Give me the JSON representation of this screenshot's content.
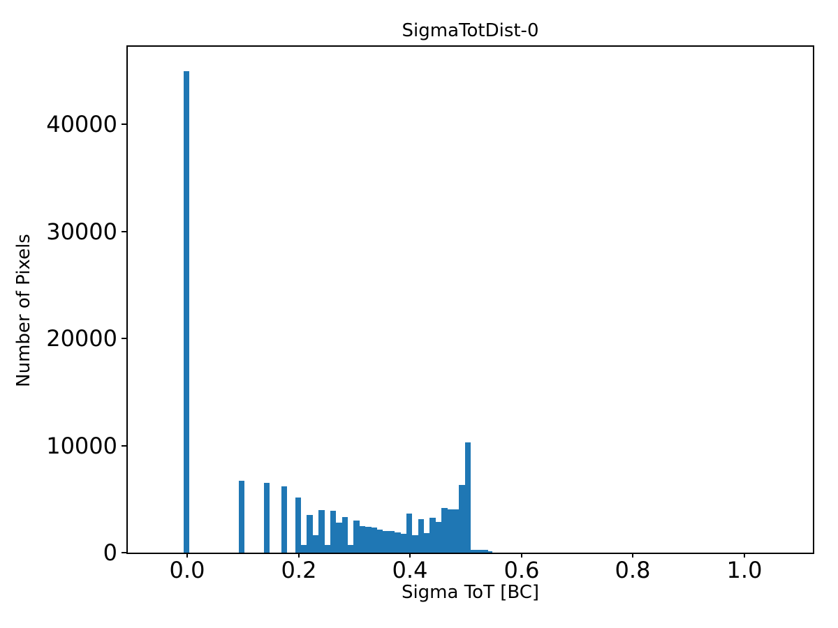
{
  "title": "SigmaTotDist-0",
  "chart_data": {
    "type": "bar",
    "subtype": "histogram",
    "title": "SigmaTotDist-0",
    "xlabel": "Sigma ToT [BC]",
    "ylabel": "Number of Pixels",
    "xlim": [
      -0.1064,
      1.1227
    ],
    "ylim": [
      0,
      47250
    ],
    "x_ticks": [
      0.0,
      0.2,
      0.4,
      0.6,
      0.8,
      1.0
    ],
    "x_tick_labels": [
      "0.0",
      "0.2",
      "0.4",
      "0.6",
      "0.8",
      "1.0"
    ],
    "y_ticks": [
      0,
      10000,
      20000,
      30000,
      40000
    ],
    "y_tick_labels": [
      "0",
      "10000",
      "20000",
      "30000",
      "40000"
    ],
    "grid": false,
    "legend": false,
    "bar_color": "#1f77b4",
    "spine_color": "#000000",
    "background_color": "#ffffff",
    "bins_format": [
      "x_start",
      "x_end",
      "count"
    ],
    "bins": [
      [
        -0.0063,
        0.0042,
        45000
      ],
      [
        0.0926,
        0.1031,
        6700
      ],
      [
        0.1377,
        0.1482,
        6500
      ],
      [
        0.169,
        0.1795,
        6200
      ],
      [
        0.1939,
        0.2044,
        5130
      ],
      [
        0.2044,
        0.2149,
        700
      ],
      [
        0.2149,
        0.2254,
        3510
      ],
      [
        0.2254,
        0.2359,
        1630
      ],
      [
        0.2359,
        0.2464,
        4000
      ],
      [
        0.2464,
        0.2569,
        700
      ],
      [
        0.2569,
        0.2674,
        3940
      ],
      [
        0.2674,
        0.2779,
        2790
      ],
      [
        0.2779,
        0.2884,
        3330
      ],
      [
        0.2884,
        0.2989,
        700
      ],
      [
        0.2989,
        0.3094,
        3000
      ],
      [
        0.3094,
        0.3199,
        2490
      ],
      [
        0.3199,
        0.3304,
        2430
      ],
      [
        0.3304,
        0.3409,
        2320
      ],
      [
        0.3409,
        0.3514,
        2170
      ],
      [
        0.3514,
        0.3619,
        2040
      ],
      [
        0.3619,
        0.3724,
        2040
      ],
      [
        0.3724,
        0.3829,
        1910
      ],
      [
        0.3829,
        0.3934,
        1780
      ],
      [
        0.3934,
        0.4039,
        3660
      ],
      [
        0.4039,
        0.4144,
        1630
      ],
      [
        0.4144,
        0.4249,
        3160
      ],
      [
        0.4249,
        0.4354,
        1820
      ],
      [
        0.4354,
        0.4459,
        3230
      ],
      [
        0.4459,
        0.4564,
        2880
      ],
      [
        0.4564,
        0.4669,
        4200
      ],
      [
        0.4669,
        0.4774,
        4030
      ],
      [
        0.4774,
        0.4879,
        4030
      ],
      [
        0.4879,
        0.4984,
        6300
      ],
      [
        0.4984,
        0.5089,
        10300
      ],
      [
        0.5089,
        0.5194,
        240
      ],
      [
        0.5194,
        0.5299,
        235
      ],
      [
        0.5299,
        0.5404,
        230
      ],
      [
        0.5404,
        0.5474,
        150
      ]
    ]
  }
}
